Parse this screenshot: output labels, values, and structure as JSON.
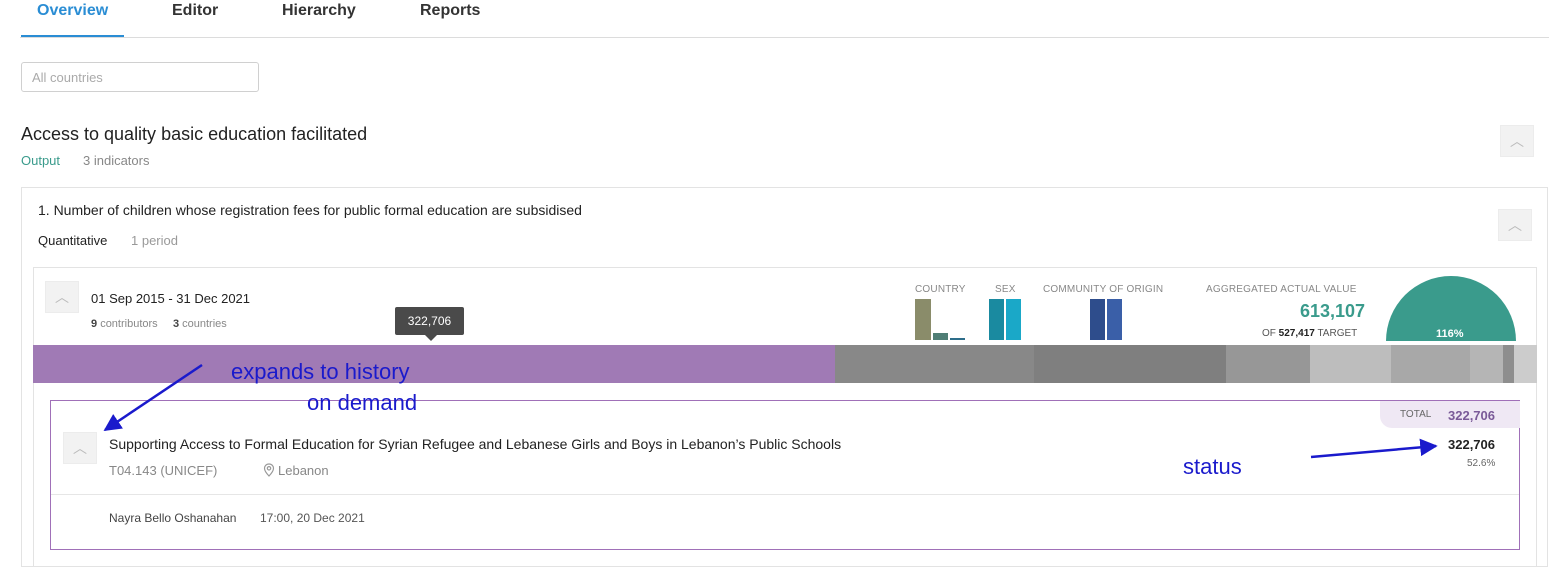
{
  "tabs": [
    {
      "label": "Overview",
      "active": true
    },
    {
      "label": "Editor"
    },
    {
      "label": "Hierarchy"
    },
    {
      "label": "Reports"
    }
  ],
  "filter": {
    "placeholder": "All countries"
  },
  "result": {
    "title": "Access to quality basic education facilitated",
    "type": "Output",
    "indicators": "3 indicators"
  },
  "indicator": {
    "title": "1. Number of children whose registration fees for public formal education are subsidised",
    "type": "Quantitative",
    "periods": "1 period"
  },
  "period": {
    "dates": "01 Sep 2015 - 31 Dec 2021",
    "contributors_count": "9",
    "contributors_label": "contributors",
    "countries_count": "3",
    "countries_label": "countries",
    "tooltip": "322,706",
    "disaggregations": [
      {
        "label": "COUNTRY",
        "colors": [
          "#8a8c6a",
          "#4f7e75",
          "#2d6d8a"
        ],
        "levels": [
          1.0,
          0.18,
          0.05
        ]
      },
      {
        "label": "SEX",
        "colors": [
          "#1a8aa0",
          "#1aa8c8"
        ],
        "levels": [
          1.0,
          1.0
        ]
      },
      {
        "label": "COMMUNITY OF ORIGIN",
        "colors": [
          "#2e4d8c",
          "#3a5fa8"
        ],
        "levels": [
          1.0,
          1.0
        ]
      }
    ],
    "aggregated": {
      "label": "AGGREGATED ACTUAL VALUE",
      "value": "613,107",
      "of": "OF",
      "target": "527,417",
      "target_label": "TARGET",
      "percent_label": "116%",
      "percent": 116,
      "gauge_color": "#3a9b8c"
    },
    "progress_segments": [
      {
        "color": "#a07ab5",
        "share": 52.6
      },
      {
        "color": "#888888",
        "share": 13.1
      },
      {
        "color": "#7f7f7f",
        "share": 12.6
      },
      {
        "color": "#979797",
        "share": 5.5
      },
      {
        "color": "#bdbdbd",
        "share": 5.3
      },
      {
        "color": "#a8a8a8",
        "share": 5.2
      },
      {
        "color": "#b5b5b5",
        "share": 2.2
      },
      {
        "color": "#8e8e8e",
        "share": 0.7
      },
      {
        "color": "#cccccc",
        "share": 1.5
      }
    ]
  },
  "project": {
    "total_label": "TOTAL",
    "total_value": "322,706",
    "title": "Supporting Access to Formal Education for Syrian Refugee and Lebanese Girls and Boys in Lebanon’s Public Schools",
    "code": "T04.143 (UNICEF)",
    "location": "Lebanon",
    "value": "322,706",
    "percent": "52.6%",
    "update_user": "Nayra Bello Oshanahan",
    "update_time": "17:00, 20 Dec 2021"
  },
  "annotations": {
    "expands_line1": "expands to history",
    "expands_line2": "on demand",
    "status": "status",
    "color": "#1a1acc"
  }
}
